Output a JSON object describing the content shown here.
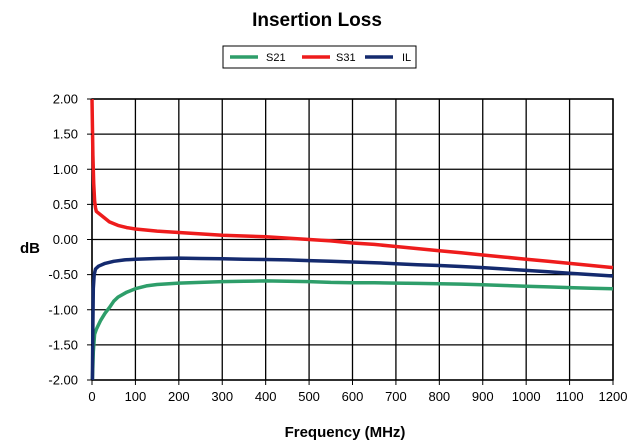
{
  "chart_data": {
    "type": "line",
    "title": "Insertion Loss",
    "xlabel": "Frequency (MHz)",
    "ylabel": "dB",
    "xlim": [
      0,
      1200
    ],
    "ylim": [
      -2.0,
      2.0
    ],
    "x_ticks": [
      0,
      100,
      200,
      300,
      400,
      500,
      600,
      700,
      800,
      900,
      1000,
      1100,
      1200
    ],
    "y_ticks": [
      2.0,
      1.5,
      1.0,
      0.5,
      0.0,
      -0.5,
      -1.0,
      -1.5,
      -2.0
    ],
    "x_tick_labels": [
      "0",
      "100",
      "200",
      "300",
      "400",
      "500",
      "600",
      "700",
      "800",
      "900",
      "1000",
      "1100",
      "1200"
    ],
    "y_tick_labels": [
      "2.00",
      "1.50",
      "1.00",
      "0.50",
      "0.00",
      "-0.50",
      "-1.00",
      "-1.50",
      "-2.00"
    ],
    "grid": true,
    "legend_position": "top-center",
    "series": [
      {
        "name": "S21",
        "color": "#2e9e6a",
        "points": [
          [
            1,
            -2.0
          ],
          [
            3,
            -1.6
          ],
          [
            6,
            -1.35
          ],
          [
            10,
            -1.28
          ],
          [
            20,
            -1.15
          ],
          [
            30,
            -1.05
          ],
          [
            40,
            -0.97
          ],
          [
            50,
            -0.88
          ],
          [
            60,
            -0.82
          ],
          [
            80,
            -0.75
          ],
          [
            100,
            -0.7
          ],
          [
            125,
            -0.66
          ],
          [
            150,
            -0.64
          ],
          [
            200,
            -0.62
          ],
          [
            250,
            -0.61
          ],
          [
            300,
            -0.6
          ],
          [
            350,
            -0.595
          ],
          [
            400,
            -0.59
          ],
          [
            450,
            -0.595
          ],
          [
            500,
            -0.6
          ],
          [
            550,
            -0.61
          ],
          [
            600,
            -0.615
          ],
          [
            650,
            -0.615
          ],
          [
            700,
            -0.62
          ],
          [
            750,
            -0.625
          ],
          [
            800,
            -0.63
          ],
          [
            850,
            -0.635
          ],
          [
            900,
            -0.645
          ],
          [
            950,
            -0.655
          ],
          [
            1000,
            -0.665
          ],
          [
            1050,
            -0.675
          ],
          [
            1100,
            -0.685
          ],
          [
            1150,
            -0.695
          ],
          [
            1200,
            -0.7
          ]
        ]
      },
      {
        "name": "S31",
        "color": "#ee1c1c",
        "points": [
          [
            0,
            2.0
          ],
          [
            2,
            1.2
          ],
          [
            4,
            0.8
          ],
          [
            6,
            0.55
          ],
          [
            8,
            0.45
          ],
          [
            10,
            0.4
          ],
          [
            20,
            0.35
          ],
          [
            40,
            0.25
          ],
          [
            60,
            0.2
          ],
          [
            80,
            0.17
          ],
          [
            100,
            0.15
          ],
          [
            150,
            0.12
          ],
          [
            200,
            0.1
          ],
          [
            250,
            0.08
          ],
          [
            300,
            0.06
          ],
          [
            350,
            0.05
          ],
          [
            400,
            0.04
          ],
          [
            450,
            0.02
          ],
          [
            500,
            0.0
          ],
          [
            550,
            -0.02
          ],
          [
            600,
            -0.05
          ],
          [
            650,
            -0.07
          ],
          [
            700,
            -0.1
          ],
          [
            750,
            -0.13
          ],
          [
            800,
            -0.16
          ],
          [
            850,
            -0.19
          ],
          [
            900,
            -0.22
          ],
          [
            950,
            -0.25
          ],
          [
            1000,
            -0.28
          ],
          [
            1050,
            -0.31
          ],
          [
            1100,
            -0.34
          ],
          [
            1150,
            -0.37
          ],
          [
            1200,
            -0.4
          ]
        ]
      },
      {
        "name": "IL",
        "color": "#142a6e",
        "points": [
          [
            1,
            -2.0
          ],
          [
            2,
            -1.2
          ],
          [
            3,
            -0.7
          ],
          [
            5,
            -0.5
          ],
          [
            8,
            -0.42
          ],
          [
            15,
            -0.38
          ],
          [
            30,
            -0.34
          ],
          [
            50,
            -0.31
          ],
          [
            75,
            -0.29
          ],
          [
            100,
            -0.28
          ],
          [
            150,
            -0.27
          ],
          [
            200,
            -0.265
          ],
          [
            250,
            -0.27
          ],
          [
            300,
            -0.275
          ],
          [
            350,
            -0.28
          ],
          [
            400,
            -0.285
          ],
          [
            450,
            -0.29
          ],
          [
            500,
            -0.3
          ],
          [
            550,
            -0.31
          ],
          [
            600,
            -0.32
          ],
          [
            650,
            -0.33
          ],
          [
            700,
            -0.345
          ],
          [
            750,
            -0.36
          ],
          [
            800,
            -0.37
          ],
          [
            850,
            -0.385
          ],
          [
            900,
            -0.4
          ],
          [
            950,
            -0.42
          ],
          [
            1000,
            -0.44
          ],
          [
            1050,
            -0.46
          ],
          [
            1100,
            -0.48
          ],
          [
            1150,
            -0.5
          ],
          [
            1200,
            -0.52
          ]
        ]
      }
    ]
  }
}
